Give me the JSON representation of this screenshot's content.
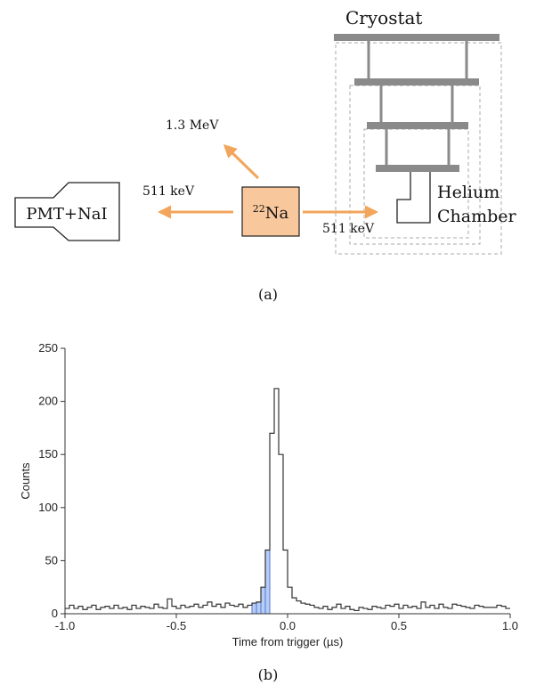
{
  "panel_a": {
    "cryostat_label": "Cryostat",
    "source_mass": "22",
    "source_symbol": "Na",
    "detector_label": "PMT+NaI",
    "gamma_up_label": "1.3 MeV",
    "gamma_left_label": "511 keV",
    "gamma_right_label": "511 keV",
    "chamber_label_1": "Helium",
    "chamber_label_2": "Chamber",
    "caption": "(a)",
    "colors": {
      "arrow": "#f2a55b",
      "source_fill": "#f9c79c",
      "cryostat": "#8a8a8a",
      "dashed": "#aaaaaa"
    }
  },
  "panel_b": {
    "caption": "(b)"
  },
  "chart_data": {
    "type": "histogram",
    "xlabel": "Time from trigger (µs)",
    "ylabel": "Counts",
    "xlim": [
      -1.0,
      1.0
    ],
    "ylim": [
      0,
      250
    ],
    "xticks": [
      -1.0,
      -0.5,
      0.0,
      0.5,
      1.0
    ],
    "xtick_labels": [
      "-1.0",
      "-0.5",
      "0.0",
      "0.5",
      "1.0"
    ],
    "yticks": [
      0,
      50,
      100,
      150,
      200,
      250
    ],
    "ytick_labels": [
      "0",
      "50",
      "100",
      "150",
      "200",
      "250"
    ],
    "bin_start": -1.0,
    "bin_width": 0.02,
    "counts": [
      5,
      8,
      5,
      7,
      4,
      6,
      8,
      4,
      6,
      7,
      5,
      8,
      5,
      6,
      4,
      8,
      5,
      7,
      6,
      5,
      9,
      6,
      5,
      14,
      7,
      5,
      8,
      6,
      7,
      9,
      6,
      8,
      11,
      7,
      9,
      6,
      10,
      8,
      7,
      9,
      6,
      8,
      10,
      11,
      25,
      60,
      170,
      212,
      150,
      60,
      25,
      15,
      12,
      10,
      9,
      8,
      6,
      5,
      7,
      4,
      6,
      9,
      5,
      7,
      4,
      3,
      6,
      5,
      4,
      7,
      6,
      5,
      8,
      7,
      9,
      5,
      8,
      6,
      7,
      5,
      11,
      6,
      8,
      5,
      9,
      6,
      5,
      9,
      8,
      7,
      6,
      5,
      8,
      7,
      6,
      6,
      6,
      8,
      7,
      5
    ],
    "highlight_range": [
      -0.16,
      -0.08
    ],
    "colors": {
      "line": "#333333",
      "highlight_fill": "#b7cdf4",
      "highlight_line": "#4f76d6"
    }
  }
}
